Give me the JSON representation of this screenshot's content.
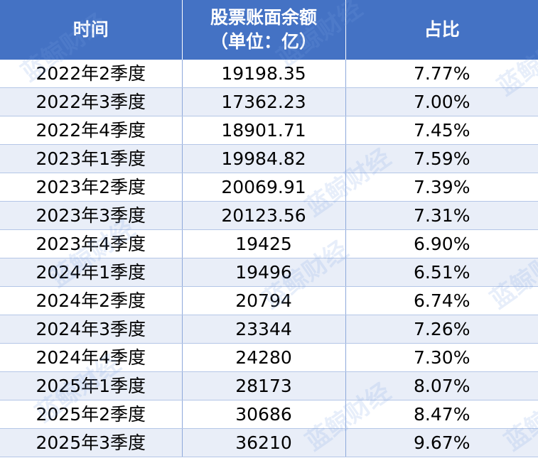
{
  "watermark": "蓝鲸财经",
  "colors": {
    "header_bg": "#4472C4",
    "alt_row_bg": "#E9EEF8",
    "border": "#B4C6E7"
  },
  "chart_data": {
    "type": "table",
    "columns": [
      "时间",
      "股票账面余额（单位：亿）",
      "占比"
    ],
    "header": {
      "col1": "时间",
      "col2_line1": "股票账面余额",
      "col2_line2": "（单位：亿）",
      "col3": "占比"
    },
    "rows": [
      [
        "2022年2季度",
        "19198.35",
        "7.77%"
      ],
      [
        "2022年3季度",
        "17362.23",
        "7.00%"
      ],
      [
        "2022年4季度",
        "18901.71",
        "7.45%"
      ],
      [
        "2023年1季度",
        "19984.82",
        "7.59%"
      ],
      [
        "2023年2季度",
        "20069.91",
        "7.39%"
      ],
      [
        "2023年3季度",
        "20123.56",
        "7.31%"
      ],
      [
        "2023年4季度",
        "19425",
        "6.90%"
      ],
      [
        "2024年1季度",
        "19496",
        "6.51%"
      ],
      [
        "2024年2季度",
        "20794",
        "6.74%"
      ],
      [
        "2024年3季度",
        "23344",
        "7.26%"
      ],
      [
        "2024年4季度",
        "24280",
        "7.30%"
      ],
      [
        "2025年1季度",
        "28173",
        "8.07%"
      ],
      [
        "2025年2季度",
        "30686",
        "8.47%"
      ],
      [
        "2025年3季度",
        "36210",
        "9.67%"
      ]
    ]
  }
}
